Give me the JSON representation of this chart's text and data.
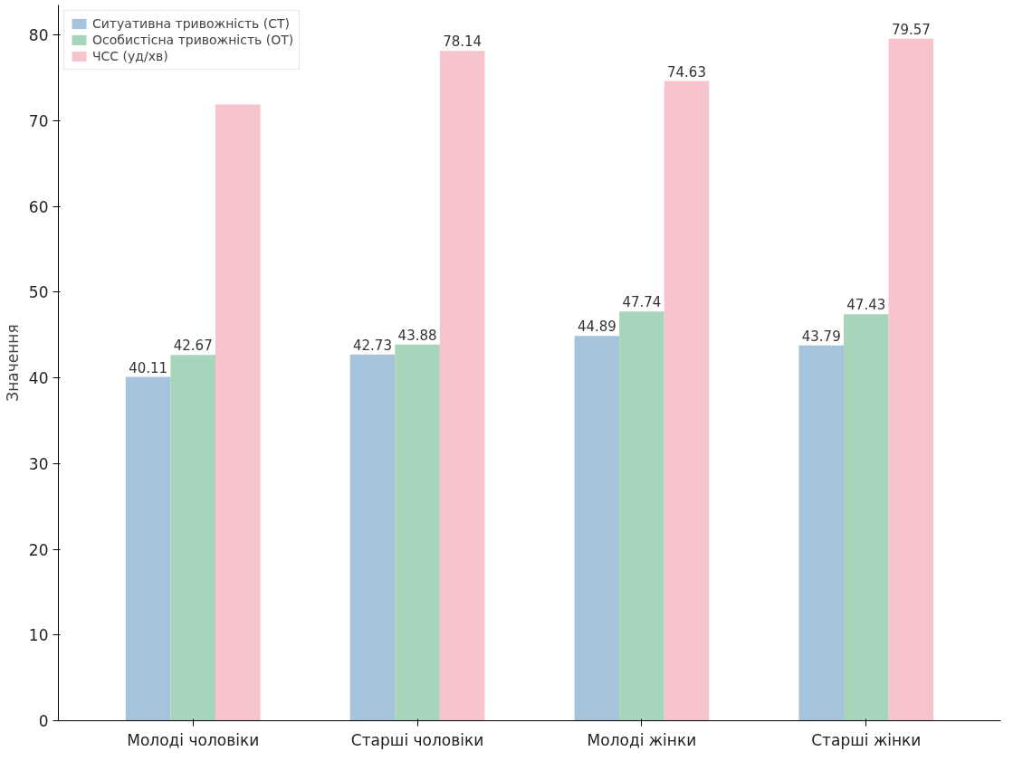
{
  "chart_data": {
    "type": "bar",
    "ylabel": "Значення",
    "categories": [
      "Молоді чоловіки",
      "Старші чоловіки",
      "Молоді жінки",
      "Старші жінки"
    ],
    "series": [
      {
        "name": "Ситуативна тривожність (СТ)",
        "color": "#a6c3dc",
        "values": [
          40.11,
          42.73,
          44.89,
          43.79
        ],
        "value_labels": [
          "40.11",
          "42.73",
          "44.89",
          "43.79"
        ]
      },
      {
        "name": "Особистісна тривожність (ОТ)",
        "color": "#a6d5bb",
        "values": [
          42.67,
          43.88,
          47.74,
          47.43
        ],
        "value_labels": [
          "42.67",
          "43.88",
          "47.74",
          "47.43"
        ]
      },
      {
        "name": "ЧСС (уд/хв)",
        "color": "#f7c3cc",
        "values": [
          71.9,
          78.14,
          74.63,
          79.57
        ],
        "value_labels": [
          null,
          "78.14",
          "74.63",
          "79.57"
        ]
      }
    ],
    "ylim": [
      0,
      83.5
    ],
    "yticks": [
      0,
      10,
      20,
      30,
      40,
      50,
      60,
      70,
      80
    ],
    "grid": false,
    "legend": "top left"
  }
}
